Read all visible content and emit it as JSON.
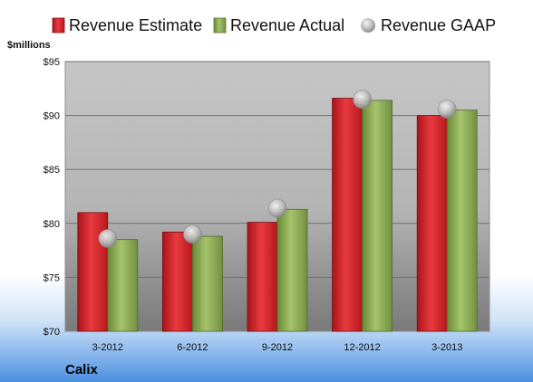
{
  "chart_data": {
    "type": "bar",
    "unit_label": "$millions",
    "company": "Calix",
    "categories": [
      "3-2012",
      "6-2012",
      "9-2012",
      "12-2012",
      "3-2013"
    ],
    "ylim": [
      70,
      95
    ],
    "yticks": [
      70,
      75,
      80,
      85,
      90,
      95
    ],
    "ytick_labels": [
      "$70",
      "$75",
      "$80",
      "$85",
      "$90",
      "$95"
    ],
    "grid": true,
    "legend_position": "top",
    "series": [
      {
        "name": "Revenue Estimate",
        "type": "bar",
        "color": "#d9262b",
        "values": [
          81.0,
          79.2,
          80.1,
          91.6,
          90.0
        ]
      },
      {
        "name": "Revenue Actual",
        "type": "bar",
        "color": "#8fae5a",
        "values": [
          78.5,
          78.8,
          81.3,
          91.4,
          90.5
        ]
      },
      {
        "name": "Revenue GAAP",
        "type": "scatter",
        "color": "#b0b0b0",
        "values": [
          78.6,
          79.0,
          81.4,
          91.5,
          90.6
        ]
      }
    ]
  }
}
